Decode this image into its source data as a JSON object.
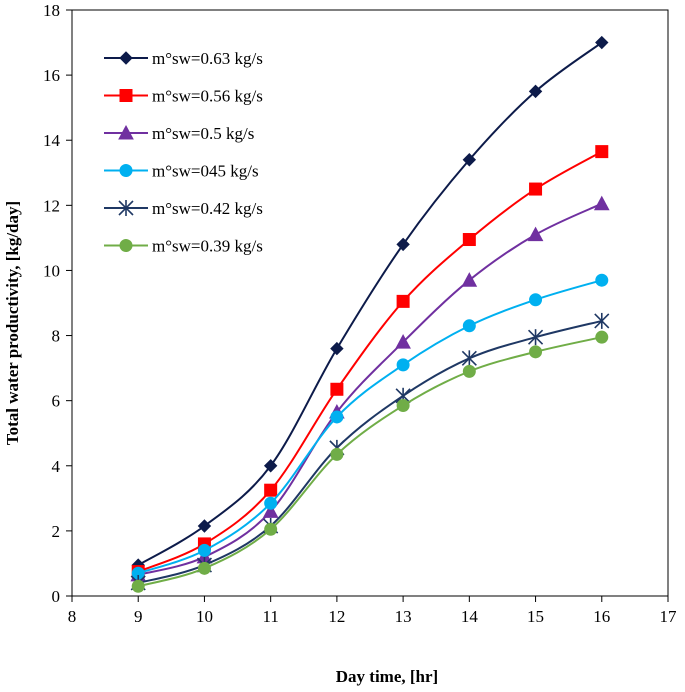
{
  "chart_data": {
    "type": "line",
    "xlabel": "Day time, [hr]",
    "ylabel": "Total water productivity, [kg/day]",
    "xlim": [
      8,
      17
    ],
    "ylim": [
      0,
      18
    ],
    "x_ticks": [
      8,
      9,
      10,
      11,
      12,
      13,
      14,
      15,
      16,
      17
    ],
    "y_ticks": [
      0,
      2,
      4,
      6,
      8,
      10,
      12,
      14,
      16,
      18
    ],
    "grid": false,
    "legend_position": "top-left",
    "x": [
      9,
      10,
      11,
      12,
      13,
      14,
      15,
      16
    ],
    "series": [
      {
        "name": "m°sw=0.63 kg/s",
        "color": "#0d1b4a",
        "marker": "diamond",
        "values": [
          0.95,
          2.15,
          4.0,
          7.6,
          10.8,
          13.4,
          15.5,
          17.0
        ]
      },
      {
        "name": "m°sw=0.56 kg/s",
        "color": "#ff0000",
        "marker": "square",
        "values": [
          0.75,
          1.6,
          3.25,
          6.35,
          9.05,
          10.95,
          12.5,
          13.65
        ]
      },
      {
        "name": "m°sw=0.5 kg/s",
        "color": "#7030a0",
        "marker": "triangle",
        "values": [
          0.65,
          1.2,
          2.6,
          5.65,
          7.8,
          9.7,
          11.1,
          12.05
        ]
      },
      {
        "name": "m°sw=045 kg/s",
        "color": "#00b0f0",
        "marker": "circle",
        "values": [
          0.7,
          1.4,
          2.85,
          5.5,
          7.1,
          8.3,
          9.1,
          9.7
        ]
      },
      {
        "name": "m°sw=0.42 kg/s",
        "color": "#1f3864",
        "marker": "asterisk",
        "values": [
          0.4,
          0.95,
          2.15,
          4.55,
          6.15,
          7.3,
          7.95,
          8.45
        ]
      },
      {
        "name": "m°sw=0.39 kg/s",
        "color": "#70ad47",
        "marker": "circle",
        "values": [
          0.3,
          0.85,
          2.05,
          4.35,
          5.85,
          6.9,
          7.5,
          7.95
        ]
      }
    ]
  }
}
